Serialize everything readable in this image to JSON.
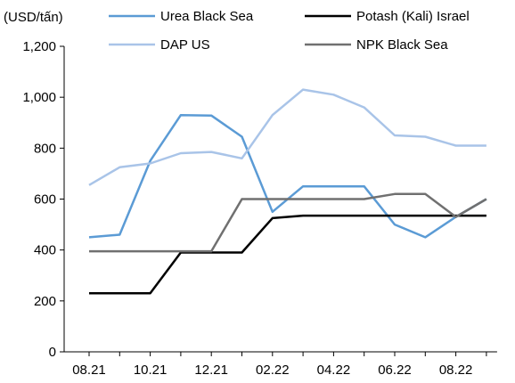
{
  "chart_data": {
    "type": "line",
    "unit_label": "(USD/tấn)",
    "ylim": [
      0,
      1200
    ],
    "yticks": [
      0,
      200,
      400,
      600,
      800,
      1000,
      1200
    ],
    "ytick_labels": [
      "0",
      "200",
      "400",
      "600",
      "800",
      "1,000",
      "1,200"
    ],
    "categories": [
      "08.21",
      "09.21",
      "10.21",
      "11.21",
      "12.21",
      "01.22",
      "02.22",
      "03.22",
      "04.22",
      "05.22",
      "06.22",
      "07.22",
      "08.22",
      "09.22"
    ],
    "xtick_labels": [
      {
        "index": 0,
        "label": "08.21"
      },
      {
        "index": 2,
        "label": "10.21"
      },
      {
        "index": 4,
        "label": "12.21"
      },
      {
        "index": 6,
        "label": "02.22"
      },
      {
        "index": 8,
        "label": "04.22"
      },
      {
        "index": 10,
        "label": "06.22"
      },
      {
        "index": 12,
        "label": "08.22"
      }
    ],
    "grid": false,
    "legend_position": "top",
    "series": [
      {
        "name": "Urea Black Sea",
        "color": "#5b9bd5",
        "values": [
          450,
          460,
          750,
          930,
          928,
          845,
          550,
          650,
          650,
          650,
          500,
          450,
          530,
          600
        ]
      },
      {
        "name": "Potash (Kali) Israel",
        "color": "#000000",
        "values": [
          230,
          230,
          230,
          390,
          390,
          390,
          525,
          535,
          535,
          535,
          535,
          535,
          535,
          535
        ]
      },
      {
        "name": "DAP US",
        "color": "#a9c4e8",
        "values": [
          655,
          725,
          740,
          780,
          785,
          760,
          930,
          1030,
          1010,
          960,
          850,
          845,
          810,
          810
        ]
      },
      {
        "name": "NPK Black Sea",
        "color": "#707070",
        "values": [
          395,
          395,
          395,
          395,
          395,
          600,
          600,
          600,
          600,
          600,
          620,
          620,
          530,
          600
        ]
      }
    ]
  }
}
